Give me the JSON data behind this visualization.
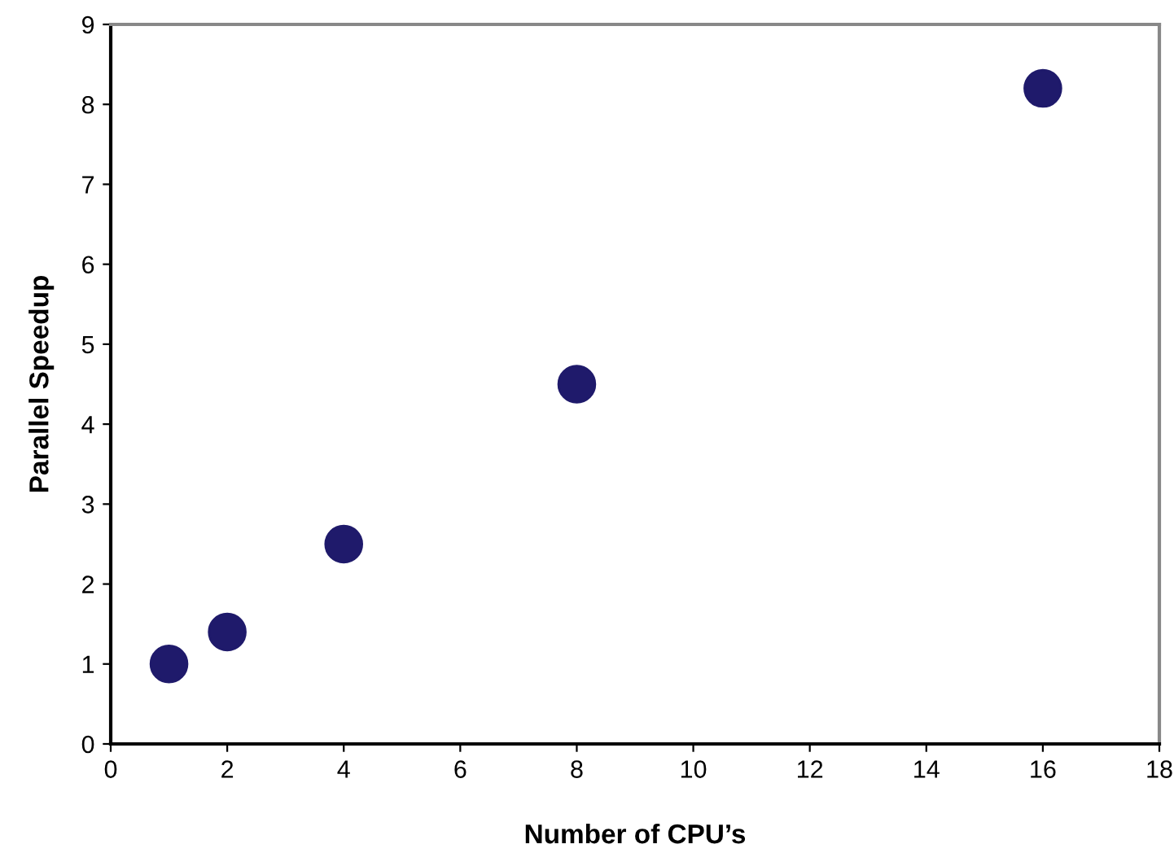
{
  "chart_data": {
    "type": "scatter",
    "xlabel": "Number of CPU’s",
    "ylabel": "Parallel Speedup",
    "x": [
      1,
      2,
      4,
      8,
      16
    ],
    "series": [
      {
        "color": "#1f1a6b",
        "values": [
          1.0,
          1.4,
          2.5,
          4.5,
          8.2
        ]
      }
    ],
    "xlim": [
      0,
      18
    ],
    "xticks": [
      0,
      2,
      4,
      6,
      8,
      10,
      12,
      14,
      16,
      18
    ],
    "ylim": [
      0,
      9
    ],
    "yticks": [
      0,
      1,
      2,
      3,
      4,
      5,
      6,
      7,
      8,
      9
    ],
    "grid": false,
    "legend": false,
    "marker": "circle"
  }
}
